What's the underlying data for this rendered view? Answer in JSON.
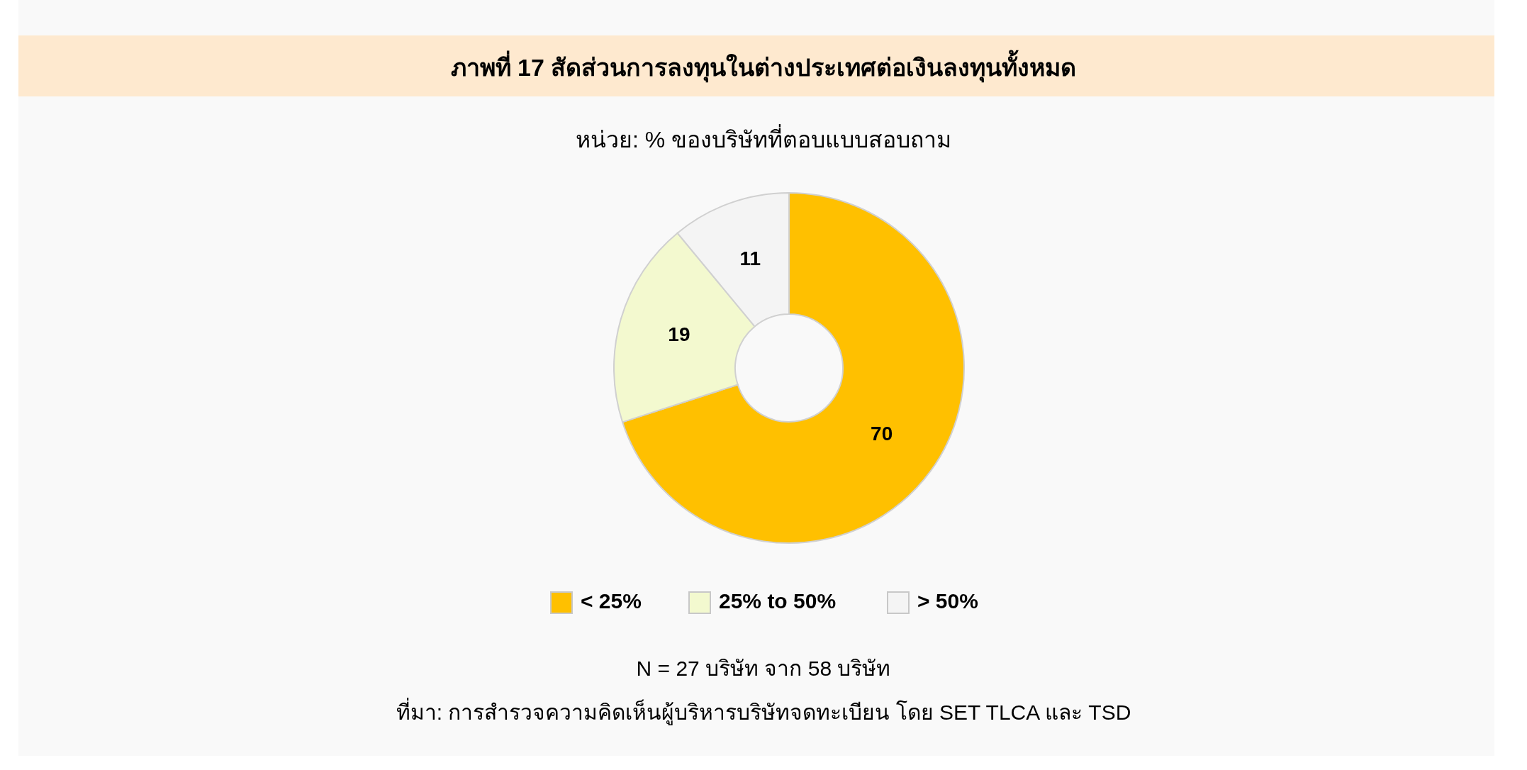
{
  "chart_data": {
    "type": "donut",
    "title": "ภาพที่ 17 สัดส่วนการลงทุนในต่างประเทศต่อเงินลงทุนทั้งหมด",
    "subtitle": "หน่วย: % ของบริษัทที่ตอบแบบสอบถาม",
    "categories": [
      "< 25%",
      "25% to 50%",
      "> 50%"
    ],
    "values": [
      70,
      19,
      11
    ],
    "colors": [
      "#ffc000",
      "#f3f9cf",
      "#f4f4f4"
    ],
    "data_labels": true,
    "legend": "bottom",
    "annotations": [
      "N = 27 บริษัท จาก 58 บริษัท",
      "ที่มา: การสำรวจความคิดเห็นผู้บริหารบริษัทจดทะเบียน โดย SET TLCA และ TSD"
    ]
  }
}
